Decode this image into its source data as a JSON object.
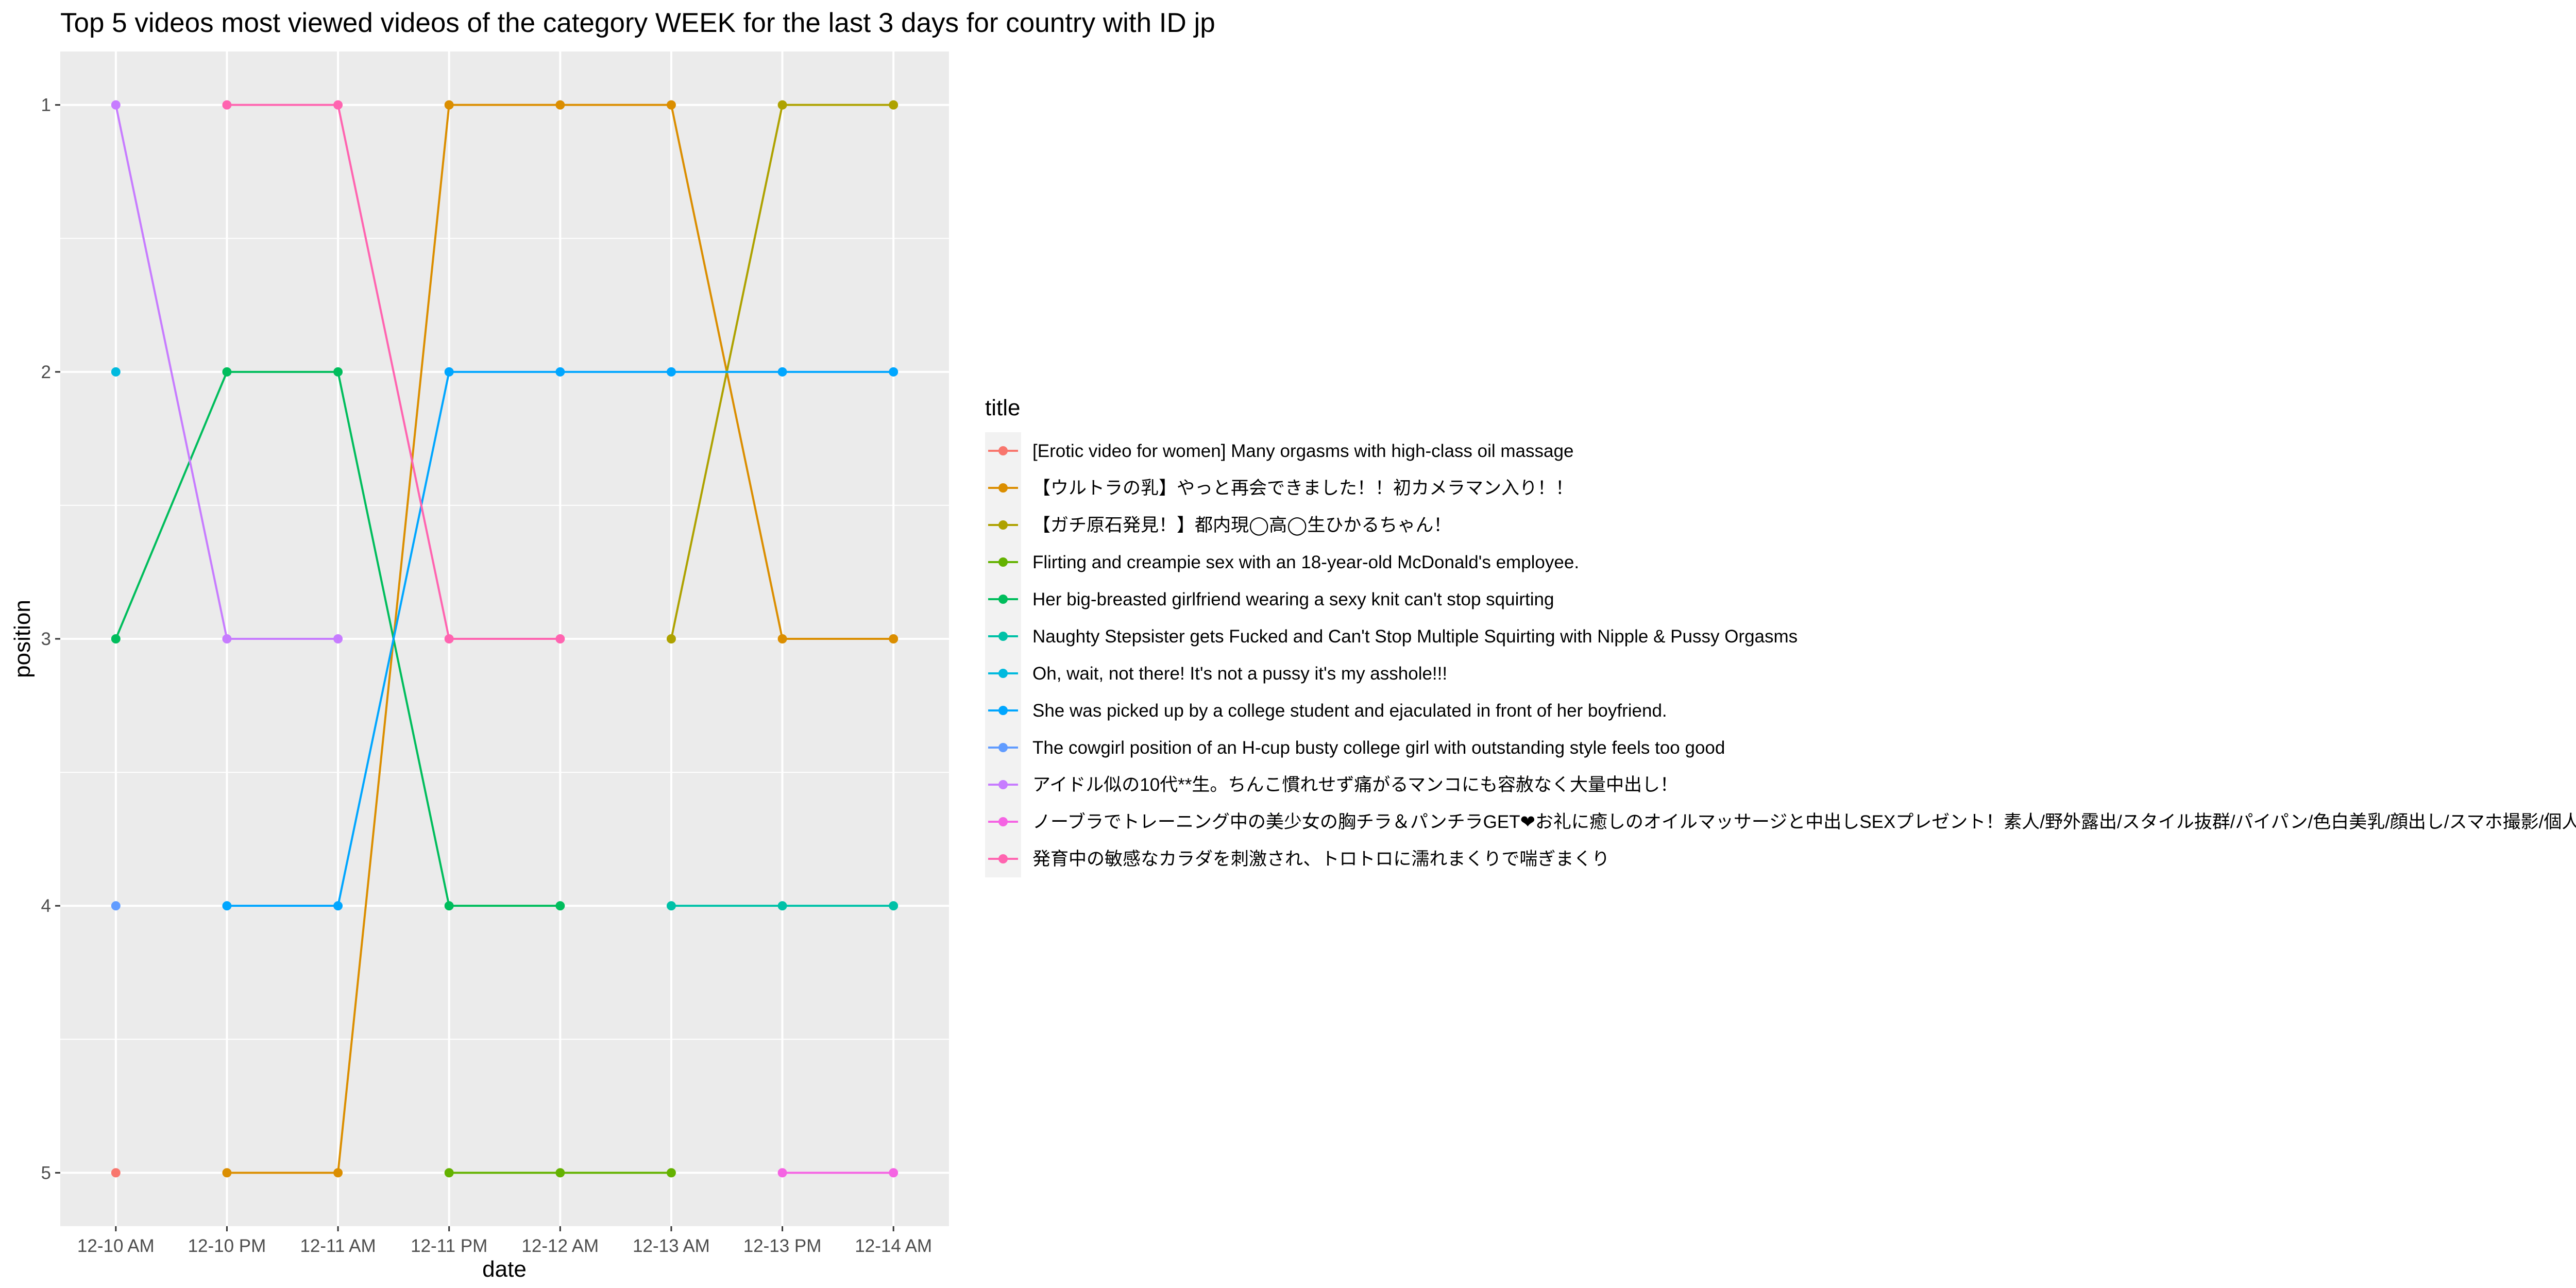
{
  "chart_data": {
    "type": "line",
    "title": "Top 5 videos most viewed videos of the category WEEK for the last 3 days for country with ID jp",
    "xlabel": "date",
    "ylabel": "position",
    "x": [
      "12-10 AM",
      "12-10 PM",
      "12-11 AM",
      "12-11 PM",
      "12-12 AM",
      "12-13 AM",
      "12-13 PM",
      "12-14 AM"
    ],
    "ylim": [
      5.2,
      0.8
    ],
    "y_reversed": true,
    "y_ticks": [
      1,
      2,
      3,
      4,
      5
    ],
    "grid": true,
    "legend_title": "title",
    "legend_position": "right",
    "series": [
      {
        "name": "[Erotic video for women] Many orgasms with high-class oil massage",
        "color": "#F8766D",
        "values": [
          5,
          null,
          null,
          null,
          null,
          null,
          null,
          null
        ]
      },
      {
        "name": "【ウルトラの乳】やっと再会できました！！初カメラマン入り！！",
        "color": "#DB8E00",
        "values": [
          null,
          5,
          5,
          1,
          1,
          1,
          3,
          3
        ]
      },
      {
        "name": "【ガチ原石発見！】都内現◯高◯生ひかるちゃん！",
        "color": "#AEA200",
        "values": [
          null,
          null,
          null,
          null,
          null,
          3,
          1,
          1
        ]
      },
      {
        "name": "Flirting and creampie sex with an 18-year-old McDonald's employee.",
        "color": "#64B200",
        "values": [
          null,
          null,
          null,
          5,
          5,
          5,
          null,
          null
        ]
      },
      {
        "name": "Her big-breasted girlfriend wearing a sexy knit can't stop squirting",
        "color": "#00BD5C",
        "values": [
          3,
          2,
          2,
          4,
          4,
          null,
          null,
          null
        ]
      },
      {
        "name": "Naughty Stepsister gets Fucked and Can't Stop Multiple Squirting with Nipple & Pussy Orgasms",
        "color": "#00C1A7",
        "values": [
          null,
          null,
          null,
          null,
          null,
          4,
          4,
          4
        ]
      },
      {
        "name": "Oh, wait, not there! It's not a pussy it's my asshole!!!",
        "color": "#00BADE",
        "values": [
          2,
          null,
          null,
          null,
          null,
          null,
          null,
          null
        ]
      },
      {
        "name": "She was picked up by a college student and ejaculated in front of her boyfriend.",
        "color": "#00A6FF",
        "values": [
          null,
          4,
          4,
          2,
          2,
          2,
          2,
          2
        ]
      },
      {
        "name": "The cowgirl position of an H-cup busty college girl with outstanding style feels too good",
        "color": "#619CFF",
        "values": [
          4,
          null,
          null,
          null,
          null,
          null,
          null,
          null
        ]
      },
      {
        "name": "アイドル似の10代**生。ちんこ慣れせず痛がるマンコにも容赦なく大量中出し！",
        "color": "#C77CFF",
        "values": [
          1,
          3,
          3,
          null,
          null,
          null,
          null,
          null
        ]
      },
      {
        "name": "ノーブラでトレーニング中の美少女の胸チラ＆パンチラGET❤お礼に癒しのオイルマッサージと中出しSEXプレゼント！素人/野外露出/スタイル抜群/パイパン/色白美乳/顔出し/スマホ撮影/個人撮影/英語字幕",
        "color": "#F564E3",
        "values": [
          null,
          null,
          null,
          null,
          null,
          null,
          5,
          5
        ]
      },
      {
        "name": "発育中の敏感なカラダを刺激され、トロトロに濡れまくりで喘ぎまくり",
        "color": "#FF64B0",
        "values": [
          null,
          1,
          1,
          3,
          3,
          null,
          null,
          null
        ]
      }
    ]
  }
}
